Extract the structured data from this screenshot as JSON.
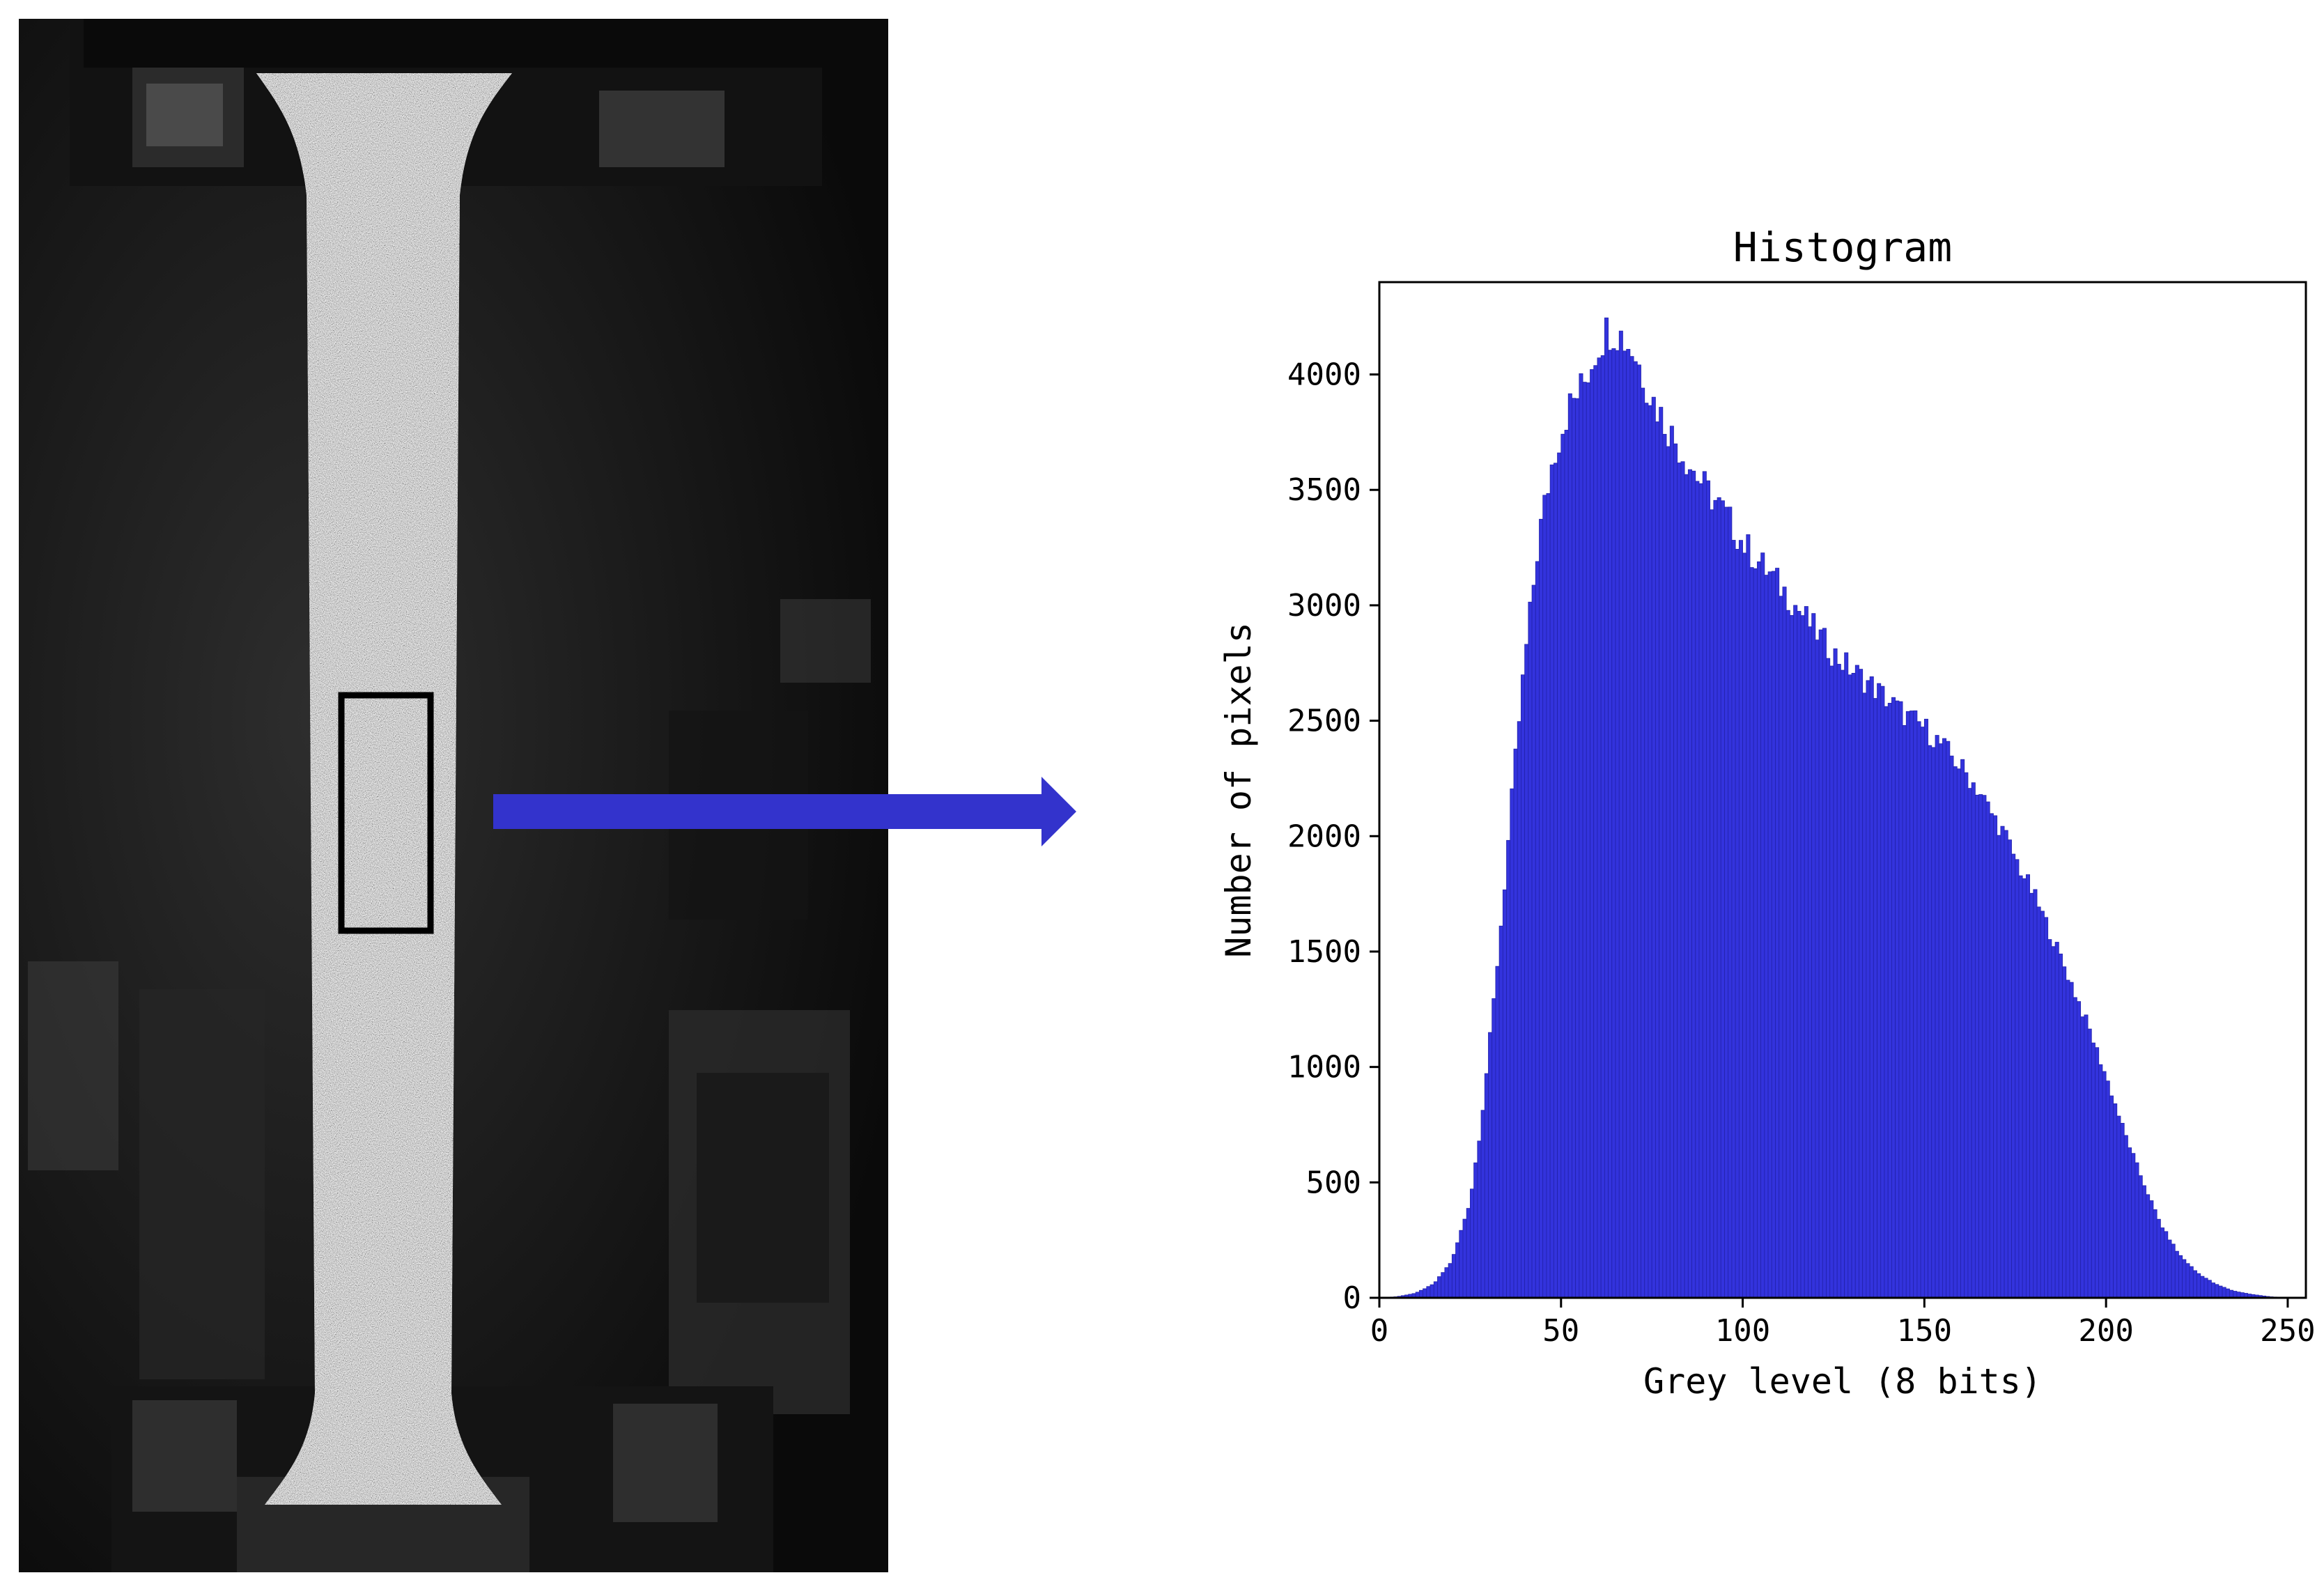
{
  "figure": {
    "photo": {
      "description_icon": "tensile-specimen-speckle-icon",
      "background_color": "#0d0d0d",
      "roi_color": "#000000"
    },
    "arrow": {
      "color": "#3333cc",
      "icon": "arrow-right-icon"
    }
  },
  "chart_data": {
    "type": "bar",
    "title": "Histogram",
    "xlabel": "Grey level (8 bits)",
    "ylabel": "Number of pixels",
    "xlim": [
      0,
      255
    ],
    "ylim": [
      0,
      4400
    ],
    "xticks": [
      0,
      50,
      100,
      150,
      200,
      250
    ],
    "yticks": [
      0,
      500,
      1000,
      1500,
      2000,
      2500,
      3000,
      3500,
      4000
    ],
    "bar_color": "#3333dd",
    "bar_edge_color": "#2222aa",
    "grid": false,
    "bin_width": 1,
    "anchors": [
      [
        0,
        0
      ],
      [
        5,
        5
      ],
      [
        10,
        20
      ],
      [
        15,
        60
      ],
      [
        20,
        160
      ],
      [
        25,
        420
      ],
      [
        28,
        750
      ],
      [
        31,
        1200
      ],
      [
        34,
        1700
      ],
      [
        37,
        2250
      ],
      [
        40,
        2750
      ],
      [
        44,
        3300
      ],
      [
        48,
        3650
      ],
      [
        52,
        3850
      ],
      [
        56,
        3950
      ],
      [
        60,
        4120
      ],
      [
        63,
        4200
      ],
      [
        66,
        4180
      ],
      [
        70,
        4100
      ],
      [
        75,
        3900
      ],
      [
        80,
        3750
      ],
      [
        85,
        3620
      ],
      [
        90,
        3500
      ],
      [
        95,
        3400
      ],
      [
        100,
        3270
      ],
      [
        105,
        3180
      ],
      [
        110,
        3090
      ],
      [
        115,
        2990
      ],
      [
        120,
        2890
      ],
      [
        125,
        2790
      ],
      [
        130,
        2720
      ],
      [
        135,
        2660
      ],
      [
        140,
        2590
      ],
      [
        145,
        2520
      ],
      [
        150,
        2470
      ],
      [
        155,
        2390
      ],
      [
        160,
        2300
      ],
      [
        165,
        2200
      ],
      [
        168,
        2110
      ],
      [
        172,
        2010
      ],
      [
        176,
        1870
      ],
      [
        180,
        1750
      ],
      [
        185,
        1570
      ],
      [
        190,
        1380
      ],
      [
        195,
        1180
      ],
      [
        200,
        960
      ],
      [
        205,
        720
      ],
      [
        210,
        510
      ],
      [
        215,
        320
      ],
      [
        220,
        190
      ],
      [
        225,
        110
      ],
      [
        230,
        60
      ],
      [
        235,
        30
      ],
      [
        240,
        15
      ],
      [
        245,
        5
      ],
      [
        250,
        0
      ],
      [
        255,
        0
      ]
    ]
  }
}
